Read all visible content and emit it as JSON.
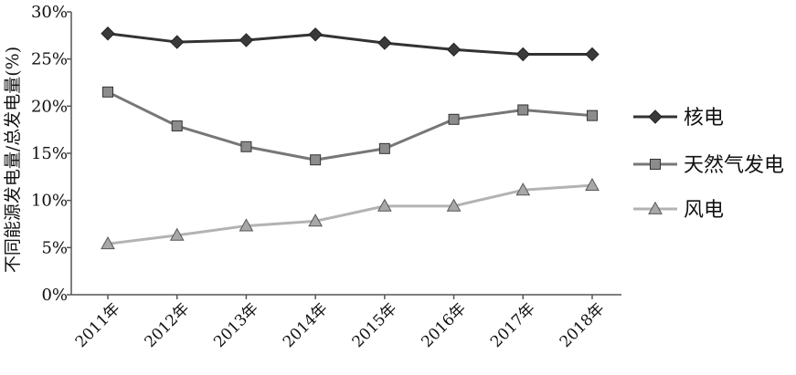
{
  "chart_data": {
    "type": "line",
    "title": "",
    "xlabel": "",
    "ylabel": "不同能源发电量/总发电量(%)",
    "categories": [
      "2011年",
      "2012年",
      "2013年",
      "2014年",
      "2015年",
      "2016年",
      "2017年",
      "2018年"
    ],
    "ylim": [
      0,
      30
    ],
    "yticks": [
      "0%",
      "5%",
      "10%",
      "15%",
      "20%",
      "25%",
      "30%"
    ],
    "ytick_values": [
      0,
      5,
      10,
      15,
      20,
      25,
      30
    ],
    "grid": false,
    "legend_position": "right",
    "series": [
      {
        "name": "核电",
        "marker": "diamond",
        "color": "#333333",
        "marker_color": "#3a3a3a",
        "values": [
          27.7,
          26.8,
          27.0,
          27.6,
          26.7,
          26.0,
          25.5,
          25.5
        ]
      },
      {
        "name": "天然气发电",
        "marker": "square",
        "color": "#777777",
        "marker_color": "#8c8c8c",
        "values": [
          21.5,
          17.9,
          15.7,
          14.3,
          15.5,
          18.6,
          19.6,
          19.0
        ]
      },
      {
        "name": "风电",
        "marker": "triangle",
        "color": "#b3b3b3",
        "marker_color": "#a8a8a8",
        "values": [
          5.4,
          6.3,
          7.3,
          7.8,
          9.4,
          9.4,
          11.1,
          11.6
        ]
      }
    ]
  }
}
